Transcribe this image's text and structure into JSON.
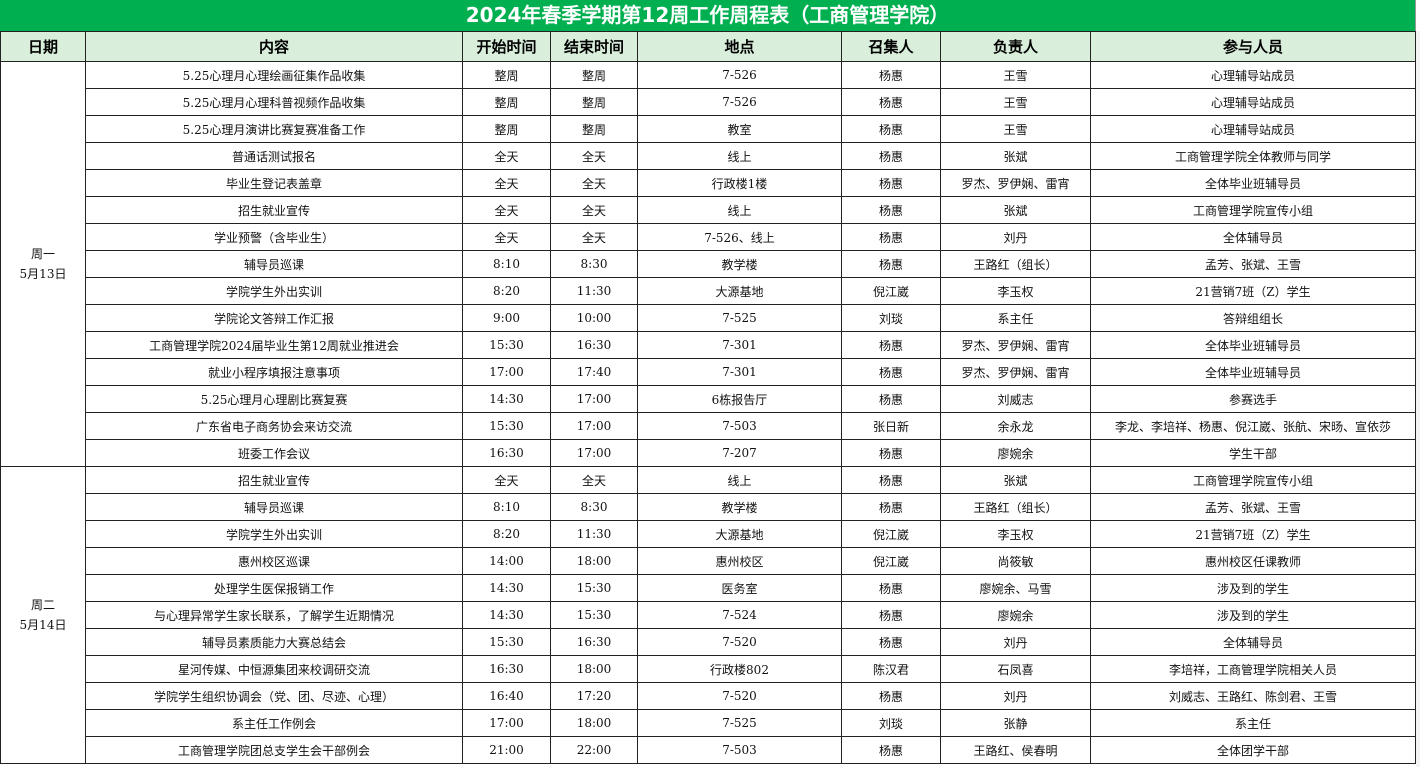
{
  "title": "2024年春季学期第12周工作周程表（工商管理学院）",
  "columns": [
    "日期",
    "内容",
    "开始时间",
    "结束时间",
    "地点",
    "召集人",
    "负责人",
    "参与人员"
  ],
  "accent_color": "#00b050",
  "header_bg": "#d9efdc",
  "days": [
    {
      "weekday": "周一",
      "date": "5月13日",
      "rows": [
        [
          "5.25心理月心理绘画征集作品收集",
          "整周",
          "整周",
          "7-526",
          "杨惠",
          "王雪",
          "心理辅导站成员"
        ],
        [
          "5.25心理月心理科普视频作品收集",
          "整周",
          "整周",
          "7-526",
          "杨惠",
          "王雪",
          "心理辅导站成员"
        ],
        [
          "5.25心理月演讲比赛复赛准备工作",
          "整周",
          "整周",
          "教室",
          "杨惠",
          "王雪",
          "心理辅导站成员"
        ],
        [
          "普通话测试报名",
          "全天",
          "全天",
          "线上",
          "杨惠",
          "张斌",
          "工商管理学院全体教师与同学"
        ],
        [
          "毕业生登记表盖章",
          "全天",
          "全天",
          "行政楼1楼",
          "杨惠",
          "罗杰、罗伊娴、雷宵",
          "全体毕业班辅导员"
        ],
        [
          "招生就业宣传",
          "全天",
          "全天",
          "线上",
          "杨惠",
          "张斌",
          "工商管理学院宣传小组"
        ],
        [
          "学业预警（含毕业生）",
          "全天",
          "全天",
          "7-526、线上",
          "杨惠",
          "刘丹",
          "全体辅导员"
        ],
        [
          "辅导员巡课",
          "8:10",
          "8:30",
          "教学楼",
          "杨惠",
          "王路红（组长）",
          "孟芳、张斌、王雪"
        ],
        [
          "学院学生外出实训",
          "8:20",
          "11:30",
          "大源基地",
          "倪江崴",
          "李玉权",
          "21营销7班（Z）学生"
        ],
        [
          "学院论文答辩工作汇报",
          "9:00",
          "10:00",
          "7-525",
          "刘琰",
          "系主任",
          "答辩组组长"
        ],
        [
          "工商管理学院2024届毕业生第12周就业推进会",
          "15:30",
          "16:30",
          "7-301",
          "杨惠",
          "罗杰、罗伊娴、雷宵",
          "全体毕业班辅导员"
        ],
        [
          "就业小程序填报注意事项",
          "17:00",
          "17:40",
          "7-301",
          "杨惠",
          "罗杰、罗伊娴、雷宵",
          "全体毕业班辅导员"
        ],
        [
          "5.25心理月心理剧比赛复赛",
          "14:30",
          "17:00",
          "6栋报告厅",
          "杨惠",
          "刘威志",
          "参赛选手"
        ],
        [
          "广东省电子商务协会来访交流",
          "15:30",
          "17:00",
          "7-503",
          "张日新",
          "余永龙",
          "李龙、李培祥、杨惠、倪江崴、张航、宋旸、宣依莎"
        ],
        [
          "班委工作会议",
          "16:30",
          "17:00",
          "7-207",
          "杨惠",
          "廖婉余",
          "学生干部"
        ]
      ]
    },
    {
      "weekday": "周二",
      "date": "5月14日",
      "rows": [
        [
          "招生就业宣传",
          "全天",
          "全天",
          "线上",
          "杨惠",
          "张斌",
          "工商管理学院宣传小组"
        ],
        [
          "辅导员巡课",
          "8:10",
          "8:30",
          "教学楼",
          "杨惠",
          "王路红（组长）",
          "孟芳、张斌、王雪"
        ],
        [
          "学院学生外出实训",
          "8:20",
          "11:30",
          "大源基地",
          "倪江崴",
          "李玉权",
          "21营销7班（Z）学生"
        ],
        [
          "惠州校区巡课",
          "14:00",
          "18:00",
          "惠州校区",
          "倪江崴",
          "尚筱敏",
          "惠州校区任课教师"
        ],
        [
          "处理学生医保报销工作",
          "14:30",
          "15:30",
          "医务室",
          "杨惠",
          "廖婉余、马雪",
          "涉及到的学生"
        ],
        [
          "与心理异常学生家长联系，了解学生近期情况",
          "14:30",
          "15:30",
          "7-524",
          "杨惠",
          "廖婉余",
          "涉及到的学生"
        ],
        [
          "辅导员素质能力大赛总结会",
          "15:30",
          "16:30",
          "7-520",
          "杨惠",
          "刘丹",
          "全体辅导员"
        ],
        [
          "星河传媒、中恒源集团来校调研交流",
          "16:30",
          "18:00",
          "行政楼802",
          "陈汉君",
          "石凤喜",
          "李培祥，工商管理学院相关人员"
        ],
        [
          "学院学生组织协调会（党、团、尽迹、心理）",
          "16:40",
          "17:20",
          "7-520",
          "杨惠",
          "刘丹",
          "刘威志、王路红、陈剑君、王雪"
        ],
        [
          "系主任工作例会",
          "17:00",
          "18:00",
          "7-525",
          "刘琰",
          "张静",
          "系主任"
        ],
        [
          "工商管理学院团总支学生会干部例会",
          "21:00",
          "22:00",
          "7-503",
          "杨惠",
          "王路红、侯春明",
          "全体团学干部"
        ]
      ]
    }
  ]
}
